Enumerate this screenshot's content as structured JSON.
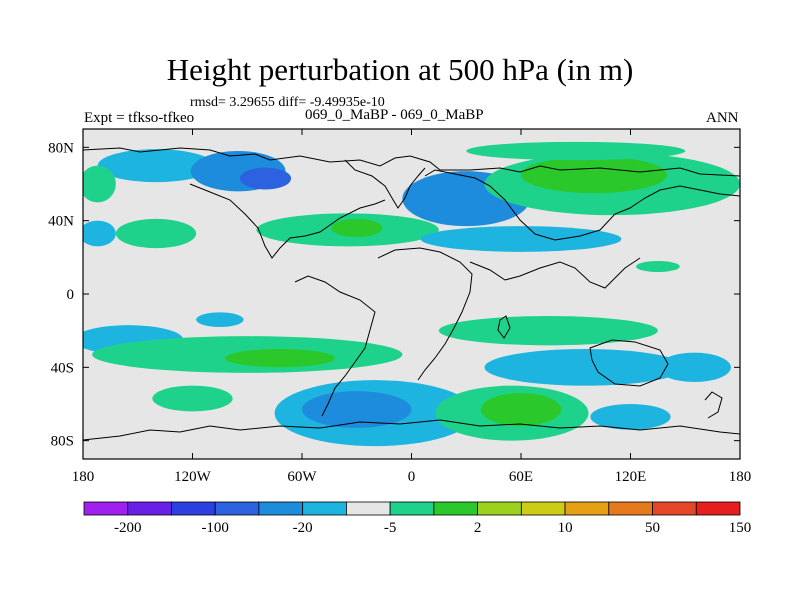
{
  "chart_data": {
    "type": "heatmap",
    "title": "Height perturbation at 500 hPa (in m)",
    "stats_text": "rmsd= 3.29655 diff= -9.49935e-10",
    "experiment_label": "Expt = tfkso-tfkeo",
    "subtitle": "069_0_MaBP - 069_0_MaBP",
    "season": "ANN",
    "x_range": [
      -180,
      180
    ],
    "y_range": [
      -90,
      90
    ],
    "x_ticks": [
      {
        "value": -180,
        "label": "180"
      },
      {
        "value": -120,
        "label": "120W"
      },
      {
        "value": -60,
        "label": "60W"
      },
      {
        "value": 0,
        "label": "0"
      },
      {
        "value": 60,
        "label": "60E"
      },
      {
        "value": 120,
        "label": "120E"
      },
      {
        "value": 180,
        "label": "180"
      }
    ],
    "y_ticks": [
      {
        "value": 80,
        "label": "80N"
      },
      {
        "value": 40,
        "label": "40N"
      },
      {
        "value": 0,
        "label": "0"
      },
      {
        "value": -40,
        "label": "40S"
      },
      {
        "value": -80,
        "label": "80S"
      }
    ],
    "colorbar": {
      "colors": [
        "#a020f0",
        "#6a1fe8",
        "#2c3fe0",
        "#2c62e0",
        "#1e8cdc",
        "#1eb4e0",
        "#e6e6e6",
        "#1ed28c",
        "#2ac82a",
        "#9cd21e",
        "#cccc14",
        "#e6a014",
        "#e6781e",
        "#e64628",
        "#e61e1e"
      ],
      "labels": [
        {
          "index": 1,
          "label": "-200"
        },
        {
          "index": 3,
          "label": "-100"
        },
        {
          "index": 5,
          "label": "-20"
        },
        {
          "index": 7,
          "label": "-5"
        },
        {
          "index": 9,
          "label": "2"
        },
        {
          "index": 11,
          "label": "10"
        },
        {
          "index": 13,
          "label": "50"
        },
        {
          "index": 15,
          "label": "150"
        }
      ]
    },
    "field_regions": [
      {
        "lon": -140,
        "lat": 70,
        "rx": 32,
        "ry": 9,
        "level": "negative"
      },
      {
        "lon": -95,
        "lat": 67,
        "rx": 26,
        "ry": 11,
        "level": "strong-negative"
      },
      {
        "lon": -80,
        "lat": 63,
        "rx": 14,
        "ry": 6,
        "level": "deep-negative"
      },
      {
        "lon": -140,
        "lat": 33,
        "rx": 22,
        "ry": 8,
        "level": "positive"
      },
      {
        "lon": -35,
        "lat": 35,
        "rx": 50,
        "ry": 9,
        "level": "positive"
      },
      {
        "lon": -30,
        "lat": 36,
        "rx": 14,
        "ry": 5,
        "level": "strong-positive"
      },
      {
        "lon": -172,
        "lat": 60,
        "rx": 10,
        "ry": 10,
        "level": "positive"
      },
      {
        "lon": -172,
        "lat": 33,
        "rx": 10,
        "ry": 7,
        "level": "negative"
      },
      {
        "lon": 30,
        "lat": 52,
        "rx": 35,
        "ry": 15,
        "level": "strong-negative"
      },
      {
        "lon": 60,
        "lat": 30,
        "rx": 55,
        "ry": 7,
        "level": "negative"
      },
      {
        "lon": 110,
        "lat": 60,
        "rx": 70,
        "ry": 17,
        "level": "positive"
      },
      {
        "lon": 100,
        "lat": 65,
        "rx": 40,
        "ry": 10,
        "level": "strong-positive"
      },
      {
        "lon": 90,
        "lat": 78,
        "rx": 60,
        "ry": 5,
        "level": "positive"
      },
      {
        "lon": 135,
        "lat": 15,
        "rx": 12,
        "ry": 3,
        "level": "positive"
      },
      {
        "lon": -105,
        "lat": -14,
        "rx": 13,
        "ry": 4,
        "level": "negative"
      },
      {
        "lon": -155,
        "lat": -25,
        "rx": 30,
        "ry": 8,
        "level": "negative"
      },
      {
        "lon": -90,
        "lat": -33,
        "rx": 85,
        "ry": 10,
        "level": "positive"
      },
      {
        "lon": -72,
        "lat": -35,
        "rx": 30,
        "ry": 5,
        "level": "strong-positive"
      },
      {
        "lon": -120,
        "lat": -57,
        "rx": 22,
        "ry": 7,
        "level": "positive"
      },
      {
        "lon": 75,
        "lat": -20,
        "rx": 60,
        "ry": 8,
        "level": "positive"
      },
      {
        "lon": 95,
        "lat": -40,
        "rx": 55,
        "ry": 10,
        "level": "negative"
      },
      {
        "lon": -20,
        "lat": -65,
        "rx": 55,
        "ry": 18,
        "level": "negative"
      },
      {
        "lon": -30,
        "lat": -63,
        "rx": 30,
        "ry": 10,
        "level": "strong-negative"
      },
      {
        "lon": 55,
        "lat": -65,
        "rx": 42,
        "ry": 15,
        "level": "positive"
      },
      {
        "lon": 60,
        "lat": -63,
        "rx": 22,
        "ry": 9,
        "level": "strong-positive"
      },
      {
        "lon": 120,
        "lat": -67,
        "rx": 22,
        "ry": 7,
        "level": "negative"
      },
      {
        "lon": 155,
        "lat": -40,
        "rx": 20,
        "ry": 8,
        "level": "negative"
      }
    ],
    "level_colors": {
      "deep-negative": "#2c62e0",
      "strong-negative": "#1e8cdc",
      "negative": "#1eb4e0",
      "positive": "#1ed28c",
      "strong-positive": "#2ac82a"
    }
  }
}
